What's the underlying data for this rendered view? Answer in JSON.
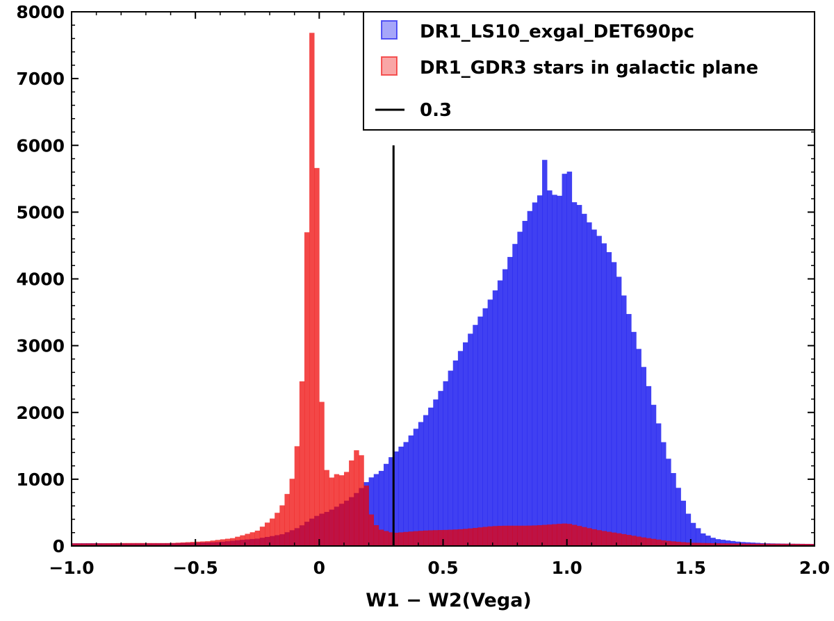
{
  "chart_data": {
    "type": "histogram",
    "title": "",
    "xlabel": "W1 − W2(Vega)",
    "ylabel": "",
    "xlim": [
      -1.0,
      2.0
    ],
    "ylim": [
      0,
      8000
    ],
    "bin_width": 0.02,
    "x_ticks": [
      {
        "value": -1.0,
        "label": "−1.0"
      },
      {
        "value": -0.5,
        "label": "−0.5"
      },
      {
        "value": 0.0,
        "label": "0"
      },
      {
        "value": 0.5,
        "label": "0.5"
      },
      {
        "value": 1.0,
        "label": "1.0"
      },
      {
        "value": 1.5,
        "label": "1.5"
      },
      {
        "value": 2.0,
        "label": "2.0"
      }
    ],
    "y_ticks": [
      {
        "value": 0,
        "label": "0"
      },
      {
        "value": 1000,
        "label": "1000"
      },
      {
        "value": 2000,
        "label": "2000"
      },
      {
        "value": 3000,
        "label": "3000"
      },
      {
        "value": 4000,
        "label": "4000"
      },
      {
        "value": 5000,
        "label": "5000"
      },
      {
        "value": 6000,
        "label": "6000"
      },
      {
        "value": 7000,
        "label": "7000"
      },
      {
        "value": 8000,
        "label": "8000"
      }
    ],
    "legend_position": "top-right",
    "series": [
      {
        "name": "DR1_LS10_exgal_DET690pc",
        "color": "#0000ee",
        "opacity": 0.75,
        "profile": [
          [
            -1.0,
            40
          ],
          [
            -0.6,
            40
          ],
          [
            -0.4,
            60
          ],
          [
            -0.25,
            110
          ],
          [
            -0.15,
            180
          ],
          [
            -0.08,
            280
          ],
          [
            -0.04,
            380
          ],
          [
            0.0,
            460
          ],
          [
            0.04,
            520
          ],
          [
            0.08,
            620
          ],
          [
            0.12,
            720
          ],
          [
            0.16,
            840
          ],
          [
            0.2,
            1000
          ],
          [
            0.25,
            1100
          ],
          [
            0.3,
            1350
          ],
          [
            0.35,
            1560
          ],
          [
            0.4,
            1850
          ],
          [
            0.5,
            2380
          ],
          [
            0.6,
            3050
          ],
          [
            0.7,
            3850
          ],
          [
            0.8,
            4600
          ],
          [
            0.9,
            5200
          ],
          [
            1.0,
            5380
          ],
          [
            1.05,
            5200
          ],
          [
            1.1,
            4750
          ],
          [
            1.2,
            4100
          ],
          [
            1.3,
            2900
          ],
          [
            1.35,
            2150
          ],
          [
            1.4,
            1400
          ],
          [
            1.45,
            850
          ],
          [
            1.5,
            380
          ],
          [
            1.55,
            190
          ],
          [
            1.6,
            110
          ],
          [
            1.7,
            60
          ],
          [
            1.8,
            40
          ],
          [
            2.0,
            30
          ]
        ],
        "spikes": [
          {
            "x": 0.91,
            "value": 5700
          },
          {
            "x": 0.93,
            "value": 5300
          },
          {
            "x": 0.99,
            "value": 5700
          },
          {
            "x": 1.01,
            "value": 5750
          }
        ]
      },
      {
        "name": "DR1_GDR3 stars in galactic plane",
        "color": "#ee0000",
        "opacity": 0.72,
        "profile": [
          [
            -1.0,
            40
          ],
          [
            -0.6,
            45
          ],
          [
            -0.45,
            70
          ],
          [
            -0.35,
            120
          ],
          [
            -0.25,
            230
          ],
          [
            -0.18,
            430
          ],
          [
            -0.14,
            650
          ],
          [
            -0.11,
            1000
          ],
          [
            -0.09,
            1500
          ],
          [
            -0.08,
            1900
          ],
          [
            -0.07,
            2500
          ],
          [
            -0.06,
            3600
          ],
          [
            -0.05,
            4800
          ],
          [
            -0.04,
            6500
          ],
          [
            -0.03,
            7880
          ],
          [
            -0.02,
            7050
          ],
          [
            -0.01,
            5800
          ],
          [
            0.0,
            3900
          ],
          [
            0.01,
            2200
          ],
          [
            0.02,
            1300
          ],
          [
            0.04,
            1000
          ],
          [
            0.06,
            1050
          ],
          [
            0.08,
            1080
          ],
          [
            0.1,
            1000
          ],
          [
            0.13,
            1250
          ],
          [
            0.16,
            1480
          ],
          [
            0.18,
            1200
          ],
          [
            0.2,
            600
          ],
          [
            0.22,
            350
          ],
          [
            0.25,
            250
          ],
          [
            0.3,
            200
          ],
          [
            0.5,
            240
          ],
          [
            0.7,
            290
          ],
          [
            0.9,
            320
          ],
          [
            1.0,
            330
          ],
          [
            1.1,
            260
          ],
          [
            1.2,
            200
          ],
          [
            1.3,
            130
          ],
          [
            1.4,
            80
          ],
          [
            1.5,
            50
          ],
          [
            1.6,
            40
          ],
          [
            2.0,
            30
          ]
        ],
        "spikes": []
      }
    ],
    "annotations": [
      {
        "type": "vline",
        "x": 0.3,
        "label": "0.3",
        "color": "#000000"
      }
    ]
  }
}
